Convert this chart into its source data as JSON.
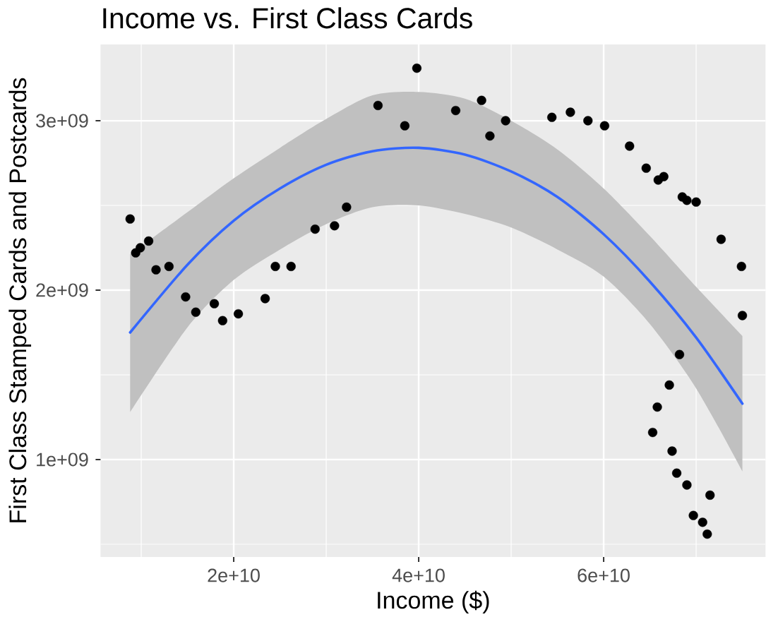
{
  "chart_data": {
    "type": "scatter",
    "title": "Income vs. First Class Cards",
    "xlabel": "Income ($)",
    "ylabel": "First Class Stamped Cards and Postcards",
    "xlim": [
      5600000000.0,
      77500000000.0
    ],
    "ylim": [
      425000000.0,
      3450000000.0
    ],
    "xticks": [
      {
        "value": 20000000000.0,
        "label": "2e+10"
      },
      {
        "value": 40000000000.0,
        "label": "4e+10"
      },
      {
        "value": 60000000000.0,
        "label": "6e+10"
      }
    ],
    "yticks": [
      {
        "value": 1000000000.0,
        "label": "1e+09"
      },
      {
        "value": 2000000000.0,
        "label": "2e+09"
      },
      {
        "value": 3000000000.0,
        "label": "3e+09"
      }
    ],
    "grid": true,
    "series": [
      {
        "type": "scatter",
        "color": "#000000",
        "marker": "circle",
        "x": [
          8800000000.0,
          9400000000.0,
          9900000000.0,
          10800000000.0,
          11600000000.0,
          13000000000.0,
          14800000000.0,
          15900000000.0,
          17900000000.0,
          18800000000.0,
          20500000000.0,
          23400000000.0,
          24500000000.0,
          26200000000.0,
          28800000000.0,
          30900000000.0,
          32200000000.0,
          35600000000.0,
          38500000000.0,
          39800000000.0,
          44000000000.0,
          46800000000.0,
          47700000000.0,
          49400000000.0,
          54400000000.0,
          56400000000.0,
          58300000000.0,
          60100000000.0,
          62800000000.0,
          64600000000.0,
          65900000000.0,
          66500000000.0,
          68500000000.0,
          69000000000.0,
          70000000000.0,
          72700000000.0,
          74900000000.0,
          75000000000.0,
          68200000000.0,
          67100000000.0,
          65800000000.0,
          65300000000.0,
          67400000000.0,
          67900000000.0,
          69000000000.0,
          71500000000.0,
          69700000000.0,
          70700000000.0,
          71200000000.0
        ],
        "values": [
          2420000000.0,
          2220000000.0,
          2250000000.0,
          2290000000.0,
          2120000000.0,
          2140000000.0,
          1960000000.0,
          1870000000.0,
          1920000000.0,
          1820000000.0,
          1860000000.0,
          1950000000.0,
          2140000000.0,
          2140000000.0,
          2360000000.0,
          2380000000.0,
          2490000000.0,
          3090000000.0,
          2970000000.0,
          3310000000.0,
          3060000000.0,
          3120000000.0,
          2910000000.0,
          3000000000.0,
          3020000000.0,
          3050000000.0,
          3000000000.0,
          2970000000.0,
          2850000000.0,
          2720000000.0,
          2650000000.0,
          2670000000.0,
          2550000000.0,
          2530000000.0,
          2520000000.0,
          2300000000.0,
          2140000000.0,
          1850000000.0,
          1620000000.0,
          1440000000.0,
          1310000000.0,
          1160000000.0,
          1050000000.0,
          920000000.0,
          850000000.0,
          790000000.0,
          670000000.0,
          630000000.0,
          560000000.0
        ]
      },
      {
        "type": "line",
        "color": "#3366ff",
        "line_style": "solid",
        "x": [
          8800000000.0,
          15000000000.0,
          20000000000.0,
          25000000000.0,
          30000000000.0,
          35000000000.0,
          40000000000.0,
          45000000000.0,
          50000000000.0,
          55000000000.0,
          60000000000.0,
          65000000000.0,
          70000000000.0,
          75000000000.0
        ],
        "values": [
          1750000000.0,
          2150000000.0,
          2410000000.0,
          2600000000.0,
          2740000000.0,
          2820000000.0,
          2840000000.0,
          2800000000.0,
          2700000000.0,
          2550000000.0,
          2330000000.0,
          2050000000.0,
          1720000000.0,
          1330000000.0
        ],
        "lower": [
          1280000000.0,
          1780000000.0,
          2060000000.0,
          2240000000.0,
          2390000000.0,
          2490000000.0,
          2500000000.0,
          2450000000.0,
          2370000000.0,
          2240000000.0,
          2080000000.0,
          1800000000.0,
          1420000000.0,
          930000000.0
        ],
        "upper": [
          2210000000.0,
          2460000000.0,
          2660000000.0,
          2840000000.0,
          3010000000.0,
          3150000000.0,
          3170000000.0,
          3130000000.0,
          3000000000.0,
          2830000000.0,
          2600000000.0,
          2320000000.0,
          2020000000.0,
          1730000000.0
        ]
      }
    ]
  }
}
